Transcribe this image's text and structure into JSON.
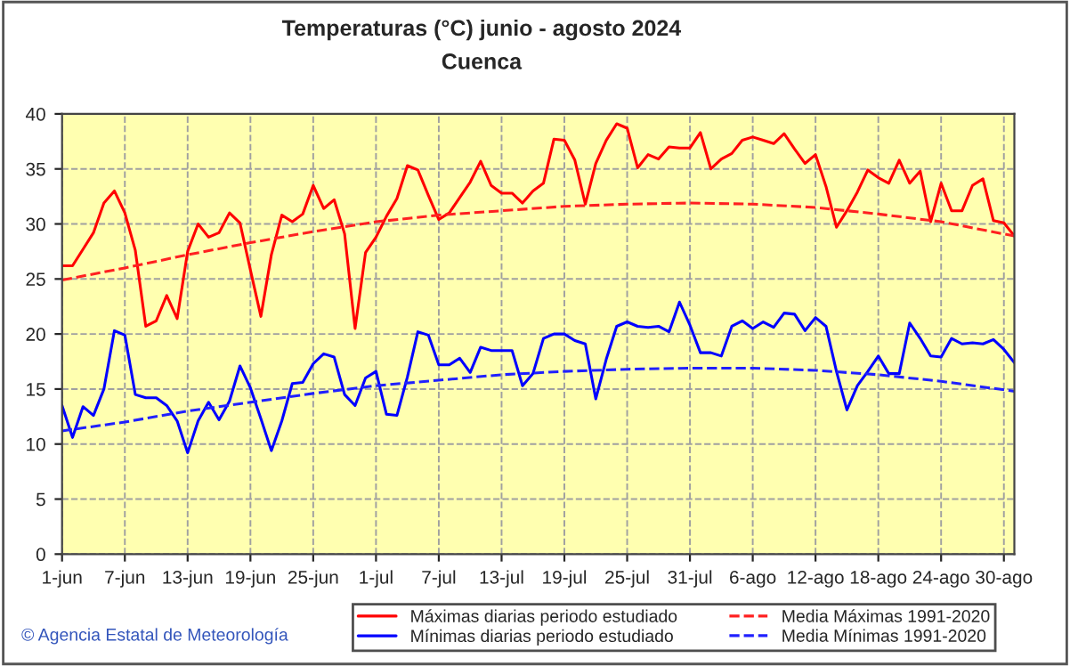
{
  "chart_data": {
    "type": "line",
    "title": "Temperaturas (°C) junio - agosto 2024",
    "subtitle": "Cuenca",
    "x": [
      "2024-06-01",
      "2024-06-02",
      "2024-06-03",
      "2024-06-04",
      "2024-06-05",
      "2024-06-06",
      "2024-06-07",
      "2024-06-08",
      "2024-06-09",
      "2024-06-10",
      "2024-06-11",
      "2024-06-12",
      "2024-06-13",
      "2024-06-14",
      "2024-06-15",
      "2024-06-16",
      "2024-06-17",
      "2024-06-18",
      "2024-06-19",
      "2024-06-20",
      "2024-06-21",
      "2024-06-22",
      "2024-06-23",
      "2024-06-24",
      "2024-06-25",
      "2024-06-26",
      "2024-06-27",
      "2024-06-28",
      "2024-06-29",
      "2024-06-30",
      "2024-07-01",
      "2024-07-02",
      "2024-07-03",
      "2024-07-04",
      "2024-07-05",
      "2024-07-06",
      "2024-07-07",
      "2024-07-08",
      "2024-07-09",
      "2024-07-10",
      "2024-07-11",
      "2024-07-12",
      "2024-07-13",
      "2024-07-14",
      "2024-07-15",
      "2024-07-16",
      "2024-07-17",
      "2024-07-18",
      "2024-07-19",
      "2024-07-20",
      "2024-07-21",
      "2024-07-22",
      "2024-07-23",
      "2024-07-24",
      "2024-07-25",
      "2024-07-26",
      "2024-07-27",
      "2024-07-28",
      "2024-07-29",
      "2024-07-30",
      "2024-07-31",
      "2024-08-01",
      "2024-08-02",
      "2024-08-03",
      "2024-08-04",
      "2024-08-05",
      "2024-08-06",
      "2024-08-07",
      "2024-08-08",
      "2024-08-09",
      "2024-08-10",
      "2024-08-11",
      "2024-08-12",
      "2024-08-13",
      "2024-08-14",
      "2024-08-15",
      "2024-08-16",
      "2024-08-17",
      "2024-08-18",
      "2024-08-19",
      "2024-08-20",
      "2024-08-21",
      "2024-08-22",
      "2024-08-23",
      "2024-08-24",
      "2024-08-25",
      "2024-08-26",
      "2024-08-27",
      "2024-08-28",
      "2024-08-29",
      "2024-08-30",
      "2024-08-31"
    ],
    "series": [
      {
        "name": "Máximas diarias periodo estudiado",
        "color": "#ff0000",
        "line_style": "solid",
        "values": [
          26.2,
          26.2,
          27.7,
          29.2,
          31.9,
          33.0,
          31.0,
          27.6,
          20.7,
          21.2,
          23.5,
          21.4,
          27.5,
          30.0,
          28.8,
          29.2,
          31.0,
          30.1,
          25.8,
          21.6,
          27.2,
          30.8,
          30.2,
          30.9,
          33.5,
          31.4,
          32.2,
          29.1,
          20.5,
          27.4,
          28.8,
          30.7,
          32.3,
          35.3,
          34.9,
          32.6,
          30.4,
          31.0,
          32.4,
          33.8,
          35.7,
          33.5,
          32.8,
          32.8,
          31.9,
          33.0,
          33.7,
          37.7,
          37.6,
          35.8,
          31.8,
          35.5,
          37.6,
          39.1,
          38.7,
          35.1,
          36.3,
          35.9,
          37.0,
          36.9,
          36.9,
          38.3,
          35.0,
          35.9,
          36.4,
          37.6,
          37.9,
          37.6,
          37.3,
          38.2,
          36.8,
          35.5,
          36.3,
          33.4,
          29.7,
          31.2,
          32.9,
          34.9,
          34.2,
          33.7,
          35.8,
          33.7,
          34.8,
          30.2,
          33.7,
          31.2,
          31.2,
          33.5,
          34.1,
          30.3,
          30.1,
          28.9
        ]
      },
      {
        "name": "Mínimas diarias periodo estudiado",
        "color": "#0000ff",
        "line_style": "solid",
        "values": [
          13.5,
          10.6,
          13.4,
          12.6,
          15.0,
          20.3,
          19.9,
          14.5,
          14.2,
          14.2,
          13.5,
          12.1,
          9.2,
          12.1,
          13.8,
          12.2,
          13.9,
          17.1,
          15.1,
          12.3,
          9.4,
          12.1,
          15.5,
          15.6,
          17.3,
          18.2,
          17.9,
          14.5,
          13.5,
          16.0,
          16.6,
          12.7,
          12.6,
          16.1,
          20.2,
          19.9,
          17.2,
          17.2,
          17.8,
          16.5,
          18.8,
          18.5,
          18.5,
          18.5,
          15.3,
          16.4,
          19.6,
          20.0,
          20.0,
          19.4,
          19.1,
          14.1,
          17.7,
          20.7,
          21.1,
          20.7,
          20.6,
          20.7,
          20.2,
          22.9,
          20.8,
          18.3,
          18.3,
          18.0,
          20.7,
          21.2,
          20.5,
          21.1,
          20.6,
          21.9,
          21.8,
          20.3,
          21.5,
          20.7,
          16.6,
          13.1,
          15.3,
          16.6,
          18.0,
          16.4,
          16.4,
          21.0,
          19.6,
          18.0,
          17.9,
          19.6,
          19.1,
          19.2,
          19.1,
          19.5,
          18.6,
          17.4
        ]
      },
      {
        "name": "Media Máximas 1991-2020",
        "color": "#ff2020",
        "line_style": "dashed",
        "x": [
          "2024-06-01",
          "2024-06-07",
          "2024-06-13",
          "2024-06-19",
          "2024-06-25",
          "2024-07-01",
          "2024-07-07",
          "2024-07-13",
          "2024-07-19",
          "2024-07-25",
          "2024-07-31",
          "2024-08-06",
          "2024-08-12",
          "2024-08-18",
          "2024-08-24",
          "2024-08-31"
        ],
        "values": [
          24.9,
          26.0,
          27.2,
          28.3,
          29.3,
          30.2,
          30.8,
          31.2,
          31.6,
          31.8,
          31.9,
          31.8,
          31.5,
          30.9,
          30.2,
          28.9
        ]
      },
      {
        "name": "Media Mínimas 1991-2020",
        "color": "#2020ff",
        "line_style": "dashed",
        "x": [
          "2024-06-01",
          "2024-06-07",
          "2024-06-13",
          "2024-06-19",
          "2024-06-25",
          "2024-07-01",
          "2024-07-07",
          "2024-07-13",
          "2024-07-19",
          "2024-07-25",
          "2024-07-31",
          "2024-08-06",
          "2024-08-12",
          "2024-08-18",
          "2024-08-24",
          "2024-08-31"
        ],
        "values": [
          11.2,
          12.0,
          13.0,
          13.8,
          14.6,
          15.3,
          15.8,
          16.3,
          16.6,
          16.8,
          16.9,
          16.9,
          16.7,
          16.3,
          15.7,
          14.8
        ]
      }
    ],
    "xlim": [
      "2024-06-01",
      "2024-08-31"
    ],
    "xticks": [
      {
        "value": "2024-06-01",
        "label": "1-jun"
      },
      {
        "value": "2024-06-07",
        "label": "7-jun"
      },
      {
        "value": "2024-06-13",
        "label": "13-jun"
      },
      {
        "value": "2024-06-19",
        "label": "19-jun"
      },
      {
        "value": "2024-06-25",
        "label": "25-jun"
      },
      {
        "value": "2024-07-01",
        "label": "1-jul"
      },
      {
        "value": "2024-07-07",
        "label": "7-jul"
      },
      {
        "value": "2024-07-13",
        "label": "13-jul"
      },
      {
        "value": "2024-07-19",
        "label": "19-jul"
      },
      {
        "value": "2024-07-25",
        "label": "25-jul"
      },
      {
        "value": "2024-07-31",
        "label": "31-jul"
      },
      {
        "value": "2024-08-06",
        "label": "6-ago"
      },
      {
        "value": "2024-08-12",
        "label": "12-ago"
      },
      {
        "value": "2024-08-18",
        "label": "18-ago"
      },
      {
        "value": "2024-08-24",
        "label": "24-ago"
      },
      {
        "value": "2024-08-30",
        "label": "30-ago"
      }
    ],
    "ylim": [
      0,
      40
    ],
    "yticks": [
      0,
      5,
      10,
      15,
      20,
      25,
      30,
      35,
      40
    ],
    "grid": true,
    "legend": "bottom",
    "marker": "none",
    "annotations": [
      "© Agencia Estatal de Meteorología"
    ]
  }
}
